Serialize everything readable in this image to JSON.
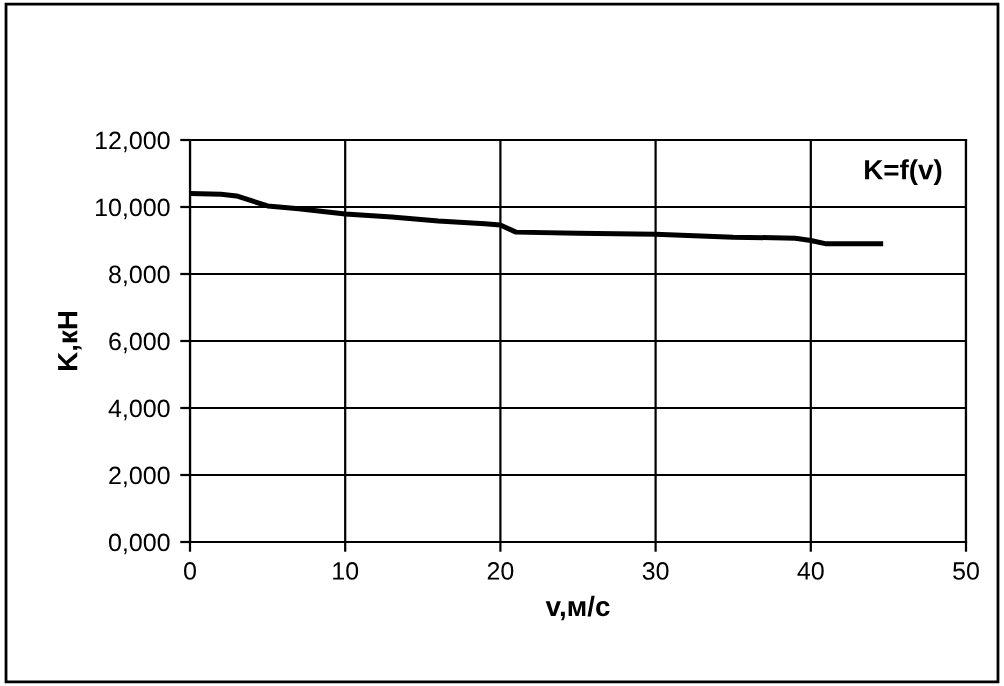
{
  "chart_data": {
    "type": "line",
    "xlabel": "v,м/с",
    "ylabel": "K,кН",
    "annotations": [
      "K=f(v)"
    ],
    "x": [
      0,
      2,
      3,
      5,
      7,
      10,
      13,
      16,
      19,
      20,
      21,
      25,
      30,
      35,
      39,
      40,
      41,
      44.5
    ],
    "series": [
      {
        "color": "#000000",
        "values": [
          10400,
          10380,
          10330,
          10030,
          9950,
          9790,
          9700,
          9580,
          9500,
          9460,
          9250,
          9220,
          9190,
          9100,
          9070,
          9000,
          8900,
          8900
        ]
      }
    ],
    "xlim": [
      0,
      50
    ],
    "xticks": [
      0,
      10,
      20,
      30,
      40,
      50
    ],
    "ylim": [
      0,
      12000
    ],
    "yticks": [
      {
        "value": 0,
        "label": "0,000"
      },
      {
        "value": 2000,
        "label": "2,000"
      },
      {
        "value": 4000,
        "label": "4,000"
      },
      {
        "value": 6000,
        "label": "6,000"
      },
      {
        "value": 8000,
        "label": "8,000"
      },
      {
        "value": 10000,
        "label": "10,000"
      },
      {
        "value": 12000,
        "label": "12,000"
      }
    ],
    "grid": true,
    "marker": "none",
    "line_style": "solid",
    "legend": false
  }
}
